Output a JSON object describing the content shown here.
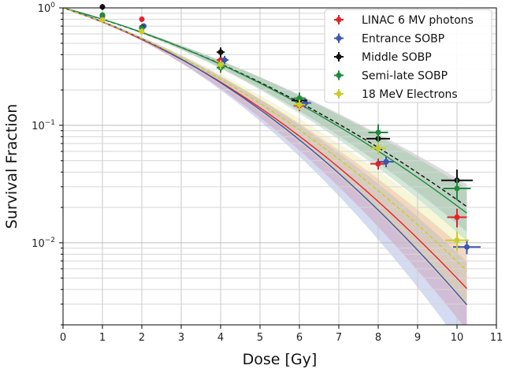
{
  "chart_data": {
    "type": "scatter",
    "xlabel": "Dose [Gy]",
    "ylabel": "Survival Fraction",
    "xlim": [
      0,
      11
    ],
    "ylim": [
      0.002,
      1.0
    ],
    "yscale": "log",
    "grid": true,
    "legend_position": "top-right",
    "x_ticks": [
      "0",
      "1",
      "2",
      "3",
      "4",
      "5",
      "6",
      "7",
      "8",
      "9",
      "10",
      "11"
    ],
    "y_ticks": [
      {
        "value": 1,
        "base": "10",
        "exp": "0"
      },
      {
        "value": 0.1,
        "base": "10",
        "exp": "−1"
      },
      {
        "value": 0.01,
        "base": "10",
        "exp": "−2"
      }
    ],
    "series": [
      {
        "name": "LINAC 6 MV photons",
        "color": "#e8202a",
        "band": "#f07a8a",
        "alpha": 0.253,
        "beta": 0.0277,
        "style": "solid",
        "points": [
          {
            "x": 1.0,
            "y": 0.85,
            "xerr": 0.05,
            "yerr": 0.04
          },
          {
            "x": 2.0,
            "y": 0.8,
            "xerr": 0.05,
            "yerr": 0.04
          },
          {
            "x": 4.0,
            "y": 0.36,
            "xerr": 0.1,
            "yerr": 0.03
          },
          {
            "x": 6.0,
            "y": 0.147,
            "xerr": 0.15,
            "yerr": 0.015
          },
          {
            "x": 8.0,
            "y": 0.047,
            "xerr": 0.2,
            "yerr": 0.005
          },
          {
            "x": 10.0,
            "y": 0.0165,
            "xerr": 0.25,
            "yerr": 0.003
          }
        ]
      },
      {
        "name": "Entrance SOBP",
        "color": "#3b55b0",
        "band": "#8898d8",
        "alpha": 0.238,
        "beta": 0.0322,
        "style": "solid",
        "points": [
          {
            "x": 1.0,
            "y": 0.86,
            "xerr": 0.05,
            "yerr": 0.04
          },
          {
            "x": 2.05,
            "y": 0.7,
            "xerr": 0.05,
            "yerr": 0.04
          },
          {
            "x": 4.1,
            "y": 0.36,
            "xerr": 0.1,
            "yerr": 0.03
          },
          {
            "x": 6.15,
            "y": 0.155,
            "xerr": 0.15,
            "yerr": 0.015
          },
          {
            "x": 8.2,
            "y": 0.049,
            "xerr": 0.2,
            "yerr": 0.005
          },
          {
            "x": 10.25,
            "y": 0.0092,
            "xerr": 0.35,
            "yerr": 0.0012
          }
        ]
      },
      {
        "name": "Middle SOBP",
        "color": "#111111",
        "band": "#9a9a9a",
        "alpha": 0.208,
        "beta": 0.0168,
        "style": "dashed",
        "points": [
          {
            "x": 1.0,
            "y": 1.02,
            "xerr": 0.05,
            "yerr": 0.06
          },
          {
            "x": 2.0,
            "y": 0.68,
            "xerr": 0.05,
            "yerr": 0.04
          },
          {
            "x": 4.0,
            "y": 0.42,
            "xerr": 0.1,
            "yerr": 0.04
          },
          {
            "x": 6.0,
            "y": 0.163,
            "xerr": 0.2,
            "yerr": 0.02
          },
          {
            "x": 8.0,
            "y": 0.077,
            "xerr": 0.3,
            "yerr": 0.01
          },
          {
            "x": 10.0,
            "y": 0.034,
            "xerr": 0.4,
            "yerr": 0.008
          }
        ]
      },
      {
        "name": "Semi-late SOBP",
        "color": "#1f8a3c",
        "band": "#80c090",
        "alpha": 0.203,
        "beta": 0.0185,
        "style": "solid",
        "points": [
          {
            "x": 1.0,
            "y": 0.87,
            "xerr": 0.05,
            "yerr": 0.04
          },
          {
            "x": 2.0,
            "y": 0.67,
            "xerr": 0.05,
            "yerr": 0.04
          },
          {
            "x": 4.0,
            "y": 0.31,
            "xerr": 0.1,
            "yerr": 0.03
          },
          {
            "x": 6.0,
            "y": 0.17,
            "xerr": 0.15,
            "yerr": 0.02
          },
          {
            "x": 8.0,
            "y": 0.087,
            "xerr": 0.25,
            "yerr": 0.015
          },
          {
            "x": 10.0,
            "y": 0.029,
            "xerr": 0.35,
            "yerr": 0.006
          }
        ]
      },
      {
        "name": "18 MeV Electrons",
        "color": "#c9cc2a",
        "band": "#e4e690",
        "alpha": 0.251,
        "beta": 0.0246,
        "style": "dashed",
        "points": [
          {
            "x": 1.0,
            "y": 0.79,
            "xerr": 0.05,
            "yerr": 0.04
          },
          {
            "x": 2.0,
            "y": 0.63,
            "xerr": 0.05,
            "yerr": 0.04
          },
          {
            "x": 4.0,
            "y": 0.33,
            "xerr": 0.1,
            "yerr": 0.03
          },
          {
            "x": 6.0,
            "y": 0.15,
            "xerr": 0.15,
            "yerr": 0.015
          },
          {
            "x": 8.0,
            "y": 0.064,
            "xerr": 0.2,
            "yerr": 0.008
          },
          {
            "x": 10.0,
            "y": 0.0105,
            "xerr": 0.3,
            "yerr": 0.002
          }
        ]
      }
    ]
  }
}
